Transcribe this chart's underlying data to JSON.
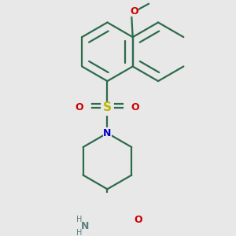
{
  "background_color": "#e8e8e8",
  "bond_color": "#2d6b4a",
  "bond_width": 1.6,
  "dbo": 0.06,
  "atom_colors": {
    "S": "#b8b800",
    "O": "#cc0000",
    "N": "#0000cc",
    "NH_color": "#5a8080",
    "H_color": "#5a8080"
  },
  "fig_width": 3.0,
  "fig_height": 3.0,
  "dpi": 100
}
